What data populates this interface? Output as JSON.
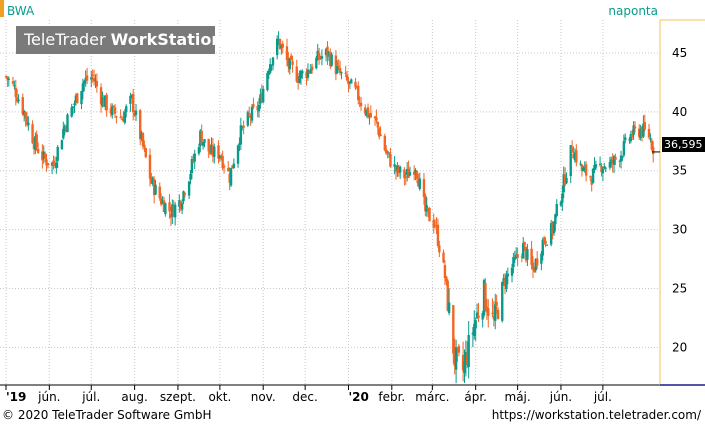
{
  "header": {
    "ticker": "BWA",
    "interval": "naponta",
    "logo_regular": "TeleTrader ",
    "logo_bold": "WorkStation"
  },
  "footer": {
    "copyright": "© 2020 TeleTrader Software GmbH",
    "url": "https://workstation.teletrader.com/"
  },
  "colors": {
    "up": "#0a9a8a",
    "down": "#f26522",
    "grid": "#c8c8c8",
    "axis_line": "#1a1a8a",
    "yaxis_border": "#f0c060"
  },
  "chart_data": {
    "type": "candlestick",
    "title": "",
    "xlabel": "",
    "ylabel": "",
    "ylim": [
      16.8,
      47.8
    ],
    "yticks": [
      20,
      25,
      30,
      35,
      40,
      45
    ],
    "ytick_labels": [
      "20",
      "25",
      "30",
      "35",
      "40",
      "45"
    ],
    "grid": true,
    "last_price": "36,595",
    "last_price_value": 36.595,
    "x_range": [
      "2019-05-01",
      "2020-08-08"
    ],
    "x_ticks": [
      {
        "date": "2019-05-01",
        "label": "'19",
        "bold": true
      },
      {
        "date": "2019-06-01",
        "label": "jún.",
        "bold": false
      },
      {
        "date": "2019-07-01",
        "label": "júl.",
        "bold": false
      },
      {
        "date": "2019-08-01",
        "label": "aug.",
        "bold": false
      },
      {
        "date": "2019-09-01",
        "label": "szept.",
        "bold": false
      },
      {
        "date": "2019-10-01",
        "label": "okt.",
        "bold": false
      },
      {
        "date": "2019-11-01",
        "label": "nov.",
        "bold": false
      },
      {
        "date": "2019-12-01",
        "label": "dec.",
        "bold": false
      },
      {
        "date": "2020-01-01",
        "label": "'20",
        "bold": true
      },
      {
        "date": "2020-02-01",
        "label": "febr.",
        "bold": false
      },
      {
        "date": "2020-03-01",
        "label": "márc.",
        "bold": false
      },
      {
        "date": "2020-04-01",
        "label": "ápr.",
        "bold": false
      },
      {
        "date": "2020-05-01",
        "label": "máj.",
        "bold": false
      },
      {
        "date": "2020-06-01",
        "label": "jún.",
        "bold": false
      },
      {
        "date": "2020-07-01",
        "label": "júl.",
        "bold": false
      }
    ],
    "series": [
      {
        "name": "BWA",
        "points": [
          [
            "2019-05-01",
            43.0
          ],
          [
            "2019-05-07",
            42.0
          ],
          [
            "2019-05-14",
            40.0
          ],
          [
            "2019-05-21",
            37.5
          ],
          [
            "2019-05-28",
            36.0
          ],
          [
            "2019-06-04",
            35.5
          ],
          [
            "2019-06-11",
            38.5
          ],
          [
            "2019-06-18",
            40.5
          ],
          [
            "2019-06-25",
            42.5
          ],
          [
            "2019-07-02",
            43.0
          ],
          [
            "2019-07-09",
            41.0
          ],
          [
            "2019-07-16",
            40.0
          ],
          [
            "2019-07-23",
            39.5
          ],
          [
            "2019-07-30",
            41.0
          ],
          [
            "2019-08-06",
            37.5
          ],
          [
            "2019-08-13",
            34.0
          ],
          [
            "2019-08-20",
            32.5
          ],
          [
            "2019-08-27",
            31.5
          ],
          [
            "2019-09-03",
            32.5
          ],
          [
            "2019-09-10",
            35.0
          ],
          [
            "2019-09-17",
            38.0
          ],
          [
            "2019-09-24",
            36.5
          ],
          [
            "2019-10-01",
            36.5
          ],
          [
            "2019-10-08",
            34.5
          ],
          [
            "2019-10-15",
            38.0
          ],
          [
            "2019-10-22",
            39.5
          ],
          [
            "2019-10-29",
            40.5
          ],
          [
            "2019-11-05",
            44.0
          ],
          [
            "2019-11-12",
            46.0
          ],
          [
            "2019-11-19",
            44.0
          ],
          [
            "2019-11-26",
            43.0
          ],
          [
            "2019-12-03",
            43.5
          ],
          [
            "2019-12-10",
            44.5
          ],
          [
            "2019-12-17",
            45.0
          ],
          [
            "2019-12-24",
            43.5
          ],
          [
            "2019-12-31",
            42.5
          ],
          [
            "2020-01-07",
            41.5
          ],
          [
            "2020-01-14",
            40.0
          ],
          [
            "2020-01-21",
            39.0
          ],
          [
            "2020-01-28",
            36.5
          ],
          [
            "2020-02-04",
            35.0
          ],
          [
            "2020-02-11",
            34.5
          ],
          [
            "2020-02-18",
            35.5
          ],
          [
            "2020-02-25",
            31.5
          ],
          [
            "2020-03-03",
            30.5
          ],
          [
            "2020-03-10",
            26.0
          ],
          [
            "2020-03-17",
            19.0
          ],
          [
            "2020-03-23",
            18.0
          ],
          [
            "2020-03-31",
            22.0
          ],
          [
            "2020-04-07",
            24.5
          ],
          [
            "2020-04-14",
            22.0
          ],
          [
            "2020-04-21",
            25.5
          ],
          [
            "2020-04-28",
            27.0
          ],
          [
            "2020-05-05",
            28.5
          ],
          [
            "2020-05-12",
            26.5
          ],
          [
            "2020-05-19",
            29.0
          ],
          [
            "2020-05-26",
            30.0
          ],
          [
            "2020-06-02",
            33.5
          ],
          [
            "2020-06-09",
            37.0
          ],
          [
            "2020-06-16",
            35.0
          ],
          [
            "2020-06-23",
            34.5
          ],
          [
            "2020-06-30",
            35.5
          ],
          [
            "2020-07-07",
            35.5
          ],
          [
            "2020-07-14",
            36.5
          ],
          [
            "2020-07-21",
            38.0
          ],
          [
            "2020-07-28",
            38.5
          ],
          [
            "2020-08-03",
            38.0
          ],
          [
            "2020-08-07",
            36.595
          ]
        ]
      }
    ]
  }
}
